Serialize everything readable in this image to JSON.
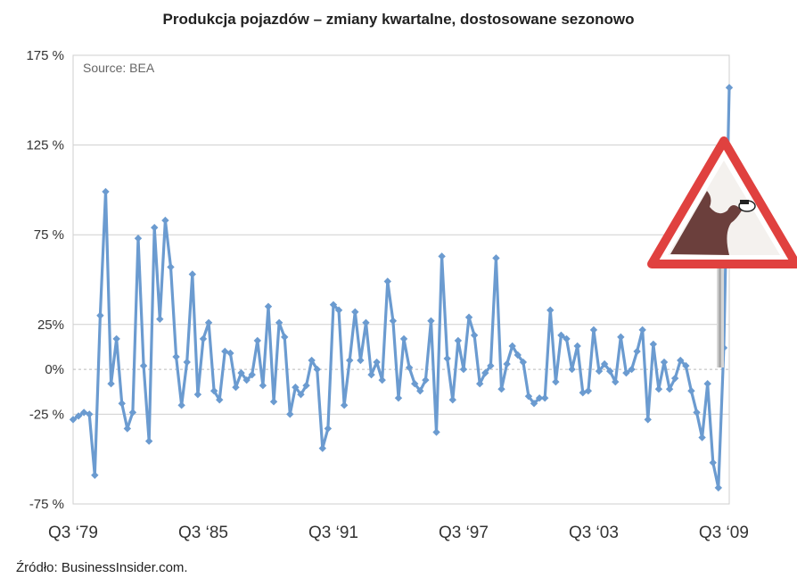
{
  "title": "Produkcja pojazdów – zmiany kwartalne, dostosowane sezonowo",
  "footer": "Źródło: BusinessInsider.com.",
  "colors": {
    "series": "#6b9bd0",
    "grid": "#cfcfcf",
    "zero": "#bbbbbb"
  },
  "chart_data": {
    "type": "line",
    "source_label": "Source: BEA",
    "ylim": [
      -75,
      175
    ],
    "grid": true,
    "y_ticks": [
      {
        "value": 175,
        "label": "175 %"
      },
      {
        "value": 125,
        "label": "125 %"
      },
      {
        "value": 75,
        "label": "75 %"
      },
      {
        "value": 25,
        "label": "25%"
      },
      {
        "value": 0,
        "label": "0%"
      },
      {
        "value": -25,
        "label": "-25 %"
      },
      {
        "value": -75,
        "label": "-75 %"
      }
    ],
    "x_ticks": [
      {
        "index": 0,
        "label": "Q3 ‘79"
      },
      {
        "index": 24,
        "label": "Q3 ‘85"
      },
      {
        "index": 48,
        "label": "Q3 ‘91"
      },
      {
        "index": 72,
        "label": "Q3 ‘97"
      },
      {
        "index": 96,
        "label": "Q3 ‘03"
      },
      {
        "index": 120,
        "label": "Q3 ‘09"
      }
    ],
    "values": [
      -28,
      -26,
      -24,
      -25,
      -59,
      30,
      99,
      -8,
      17,
      -19,
      -33,
      -24,
      73,
      2,
      -40,
      79,
      28,
      83,
      57,
      7,
      -20,
      4,
      53,
      -14,
      17,
      26,
      -12,
      -17,
      10,
      9,
      -10,
      -2,
      -6,
      -3,
      16,
      -9,
      35,
      -18,
      26,
      18,
      -25,
      -10,
      -14,
      -9,
      5,
      0,
      -44,
      -33,
      36,
      33,
      -20,
      5,
      32,
      5,
      26,
      -3,
      4,
      -6,
      49,
      27,
      -16,
      17,
      1,
      -8,
      -12,
      -6,
      27,
      -35,
      63,
      6,
      -17,
      16,
      0,
      29,
      19,
      -8,
      -2,
      2,
      62,
      -11,
      3,
      13,
      8,
      4,
      -15,
      -19,
      -16,
      -16,
      33,
      -7,
      19,
      17,
      0,
      13,
      -13,
      -12,
      22,
      -1,
      3,
      -1,
      -7,
      18,
      -2,
      0,
      10,
      22,
      -28,
      14,
      -11,
      4,
      -11,
      -5,
      5,
      2,
      -12,
      -24,
      -38,
      -8,
      -52,
      -66,
      12,
      157
    ]
  }
}
